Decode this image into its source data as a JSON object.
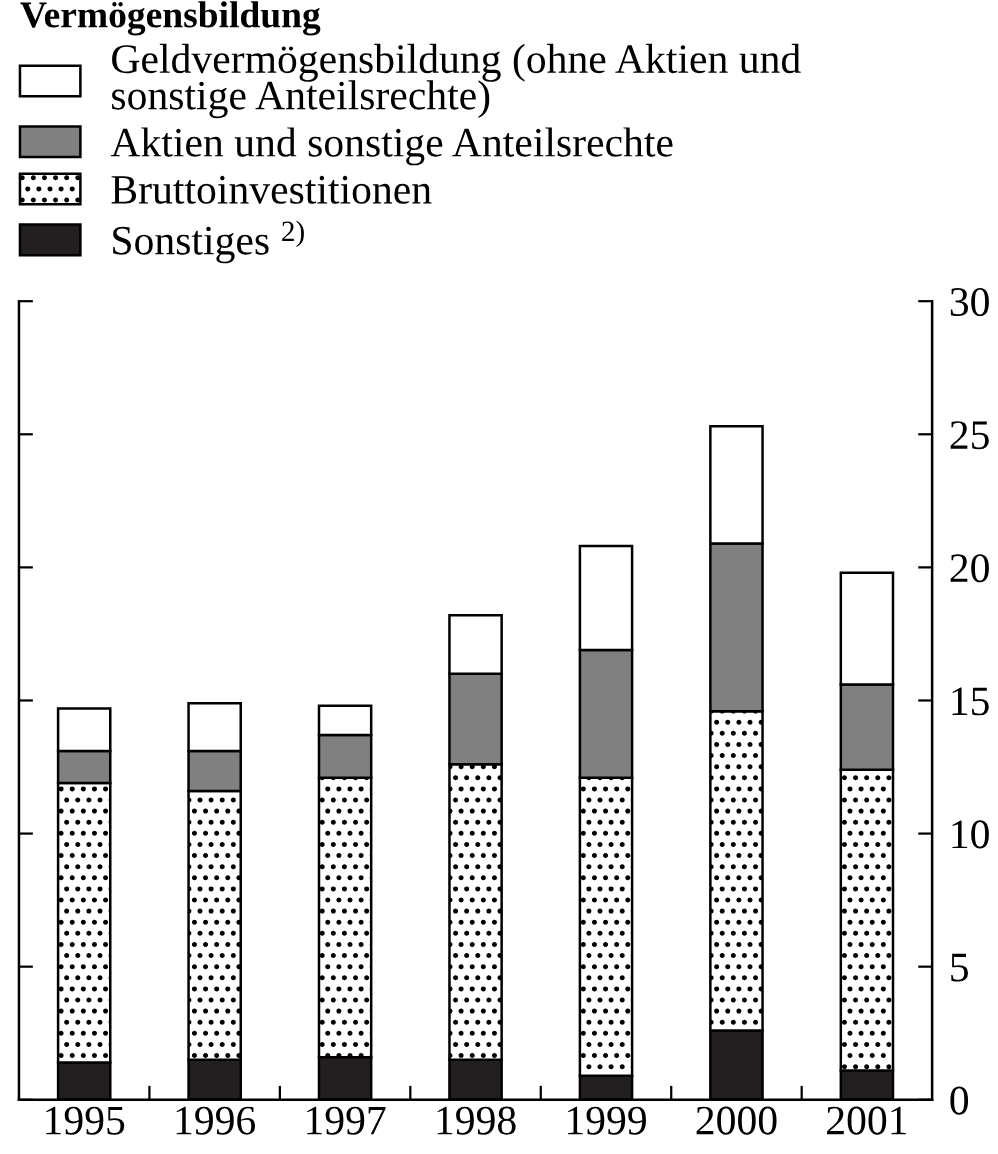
{
  "chart_data": {
    "type": "bar",
    "title": "Vermögensbildung",
    "stacked": true,
    "categories": [
      "1995",
      "1996",
      "1997",
      "1998",
      "1999",
      "2000",
      "2001"
    ],
    "series": [
      {
        "name": "Sonstiges $^{2)}$",
        "color": "#231f20",
        "values": [
          1.4,
          1.5,
          1.6,
          1.5,
          0.9,
          2.6,
          1.1
        ]
      },
      {
        "name": "Bruttoinvestitionen",
        "color": "#000000",
        "values": [
          10.5,
          10.1,
          10.5,
          11.1,
          11.2,
          12.0,
          11.3
        ]
      },
      {
        "name": "Aktien und sonstige Anteilsrechte",
        "color": "#808080",
        "values": [
          1.2,
          1.5,
          1.6,
          3.4,
          4.8,
          6.3,
          3.2
        ]
      },
      {
        "name": "Geldvermögensbildung (ohne Aktien und\nsonstige Anteilsrechte)",
        "color": "#ffffff",
        "values": [
          1.6,
          1.8,
          1.1,
          2.2,
          3.9,
          4.4,
          4.2
        ]
      }
    ],
    "ylim": [
      0,
      30
    ],
    "yticks": [
      0,
      5,
      10,
      15,
      20,
      25,
      30
    ],
    "legend": "top left"
  }
}
